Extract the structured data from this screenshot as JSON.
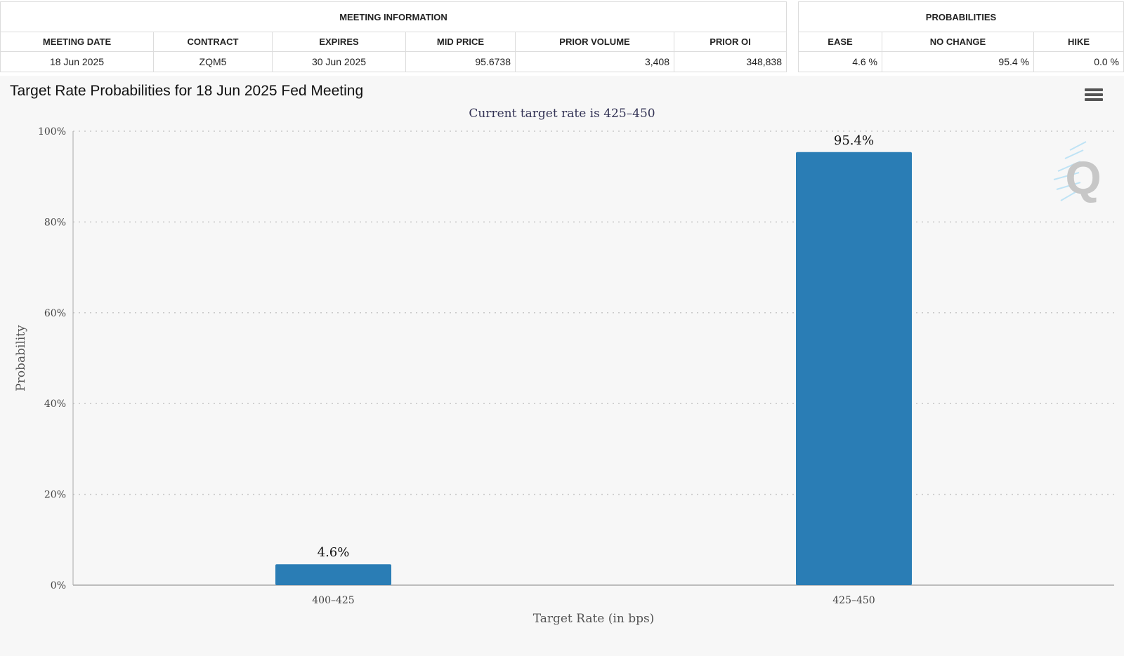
{
  "meeting_info": {
    "group_label": "MEETING INFORMATION",
    "headers": [
      "MEETING DATE",
      "CONTRACT",
      "EXPIRES",
      "MID PRICE",
      "PRIOR VOLUME",
      "PRIOR OI"
    ],
    "row": [
      "18 Jun 2025",
      "ZQM5",
      "30 Jun 2025",
      "95.6738",
      "3,408",
      "348,838"
    ]
  },
  "probabilities": {
    "group_label": "PROBABILITIES",
    "headers": [
      "EASE",
      "NO CHANGE",
      "HIKE"
    ],
    "row": [
      "4.6 %",
      "95.4 %",
      "0.0 %"
    ]
  },
  "chart_data": {
    "type": "bar",
    "title": "Target Rate Probabilities for 18 Jun 2025 Fed Meeting",
    "subtitle": "Current target rate is 425–450",
    "xlabel": "Target Rate (in bps)",
    "ylabel": "Probability",
    "categories": [
      "400–425",
      "425–450"
    ],
    "values": [
      4.6,
      95.4
    ],
    "data_labels": [
      "4.6%",
      "95.4%"
    ],
    "ylim": [
      0,
      100
    ],
    "yticks": [
      0,
      20,
      40,
      60,
      80,
      100
    ],
    "ytick_labels": [
      "0%",
      "20%",
      "40%",
      "60%",
      "80%",
      "100%"
    ],
    "grid": true,
    "bar_color": "#2a7db5"
  },
  "icons": {
    "menu": "hamburger-menu-icon",
    "logo": "quikstrike-logo-icon"
  }
}
